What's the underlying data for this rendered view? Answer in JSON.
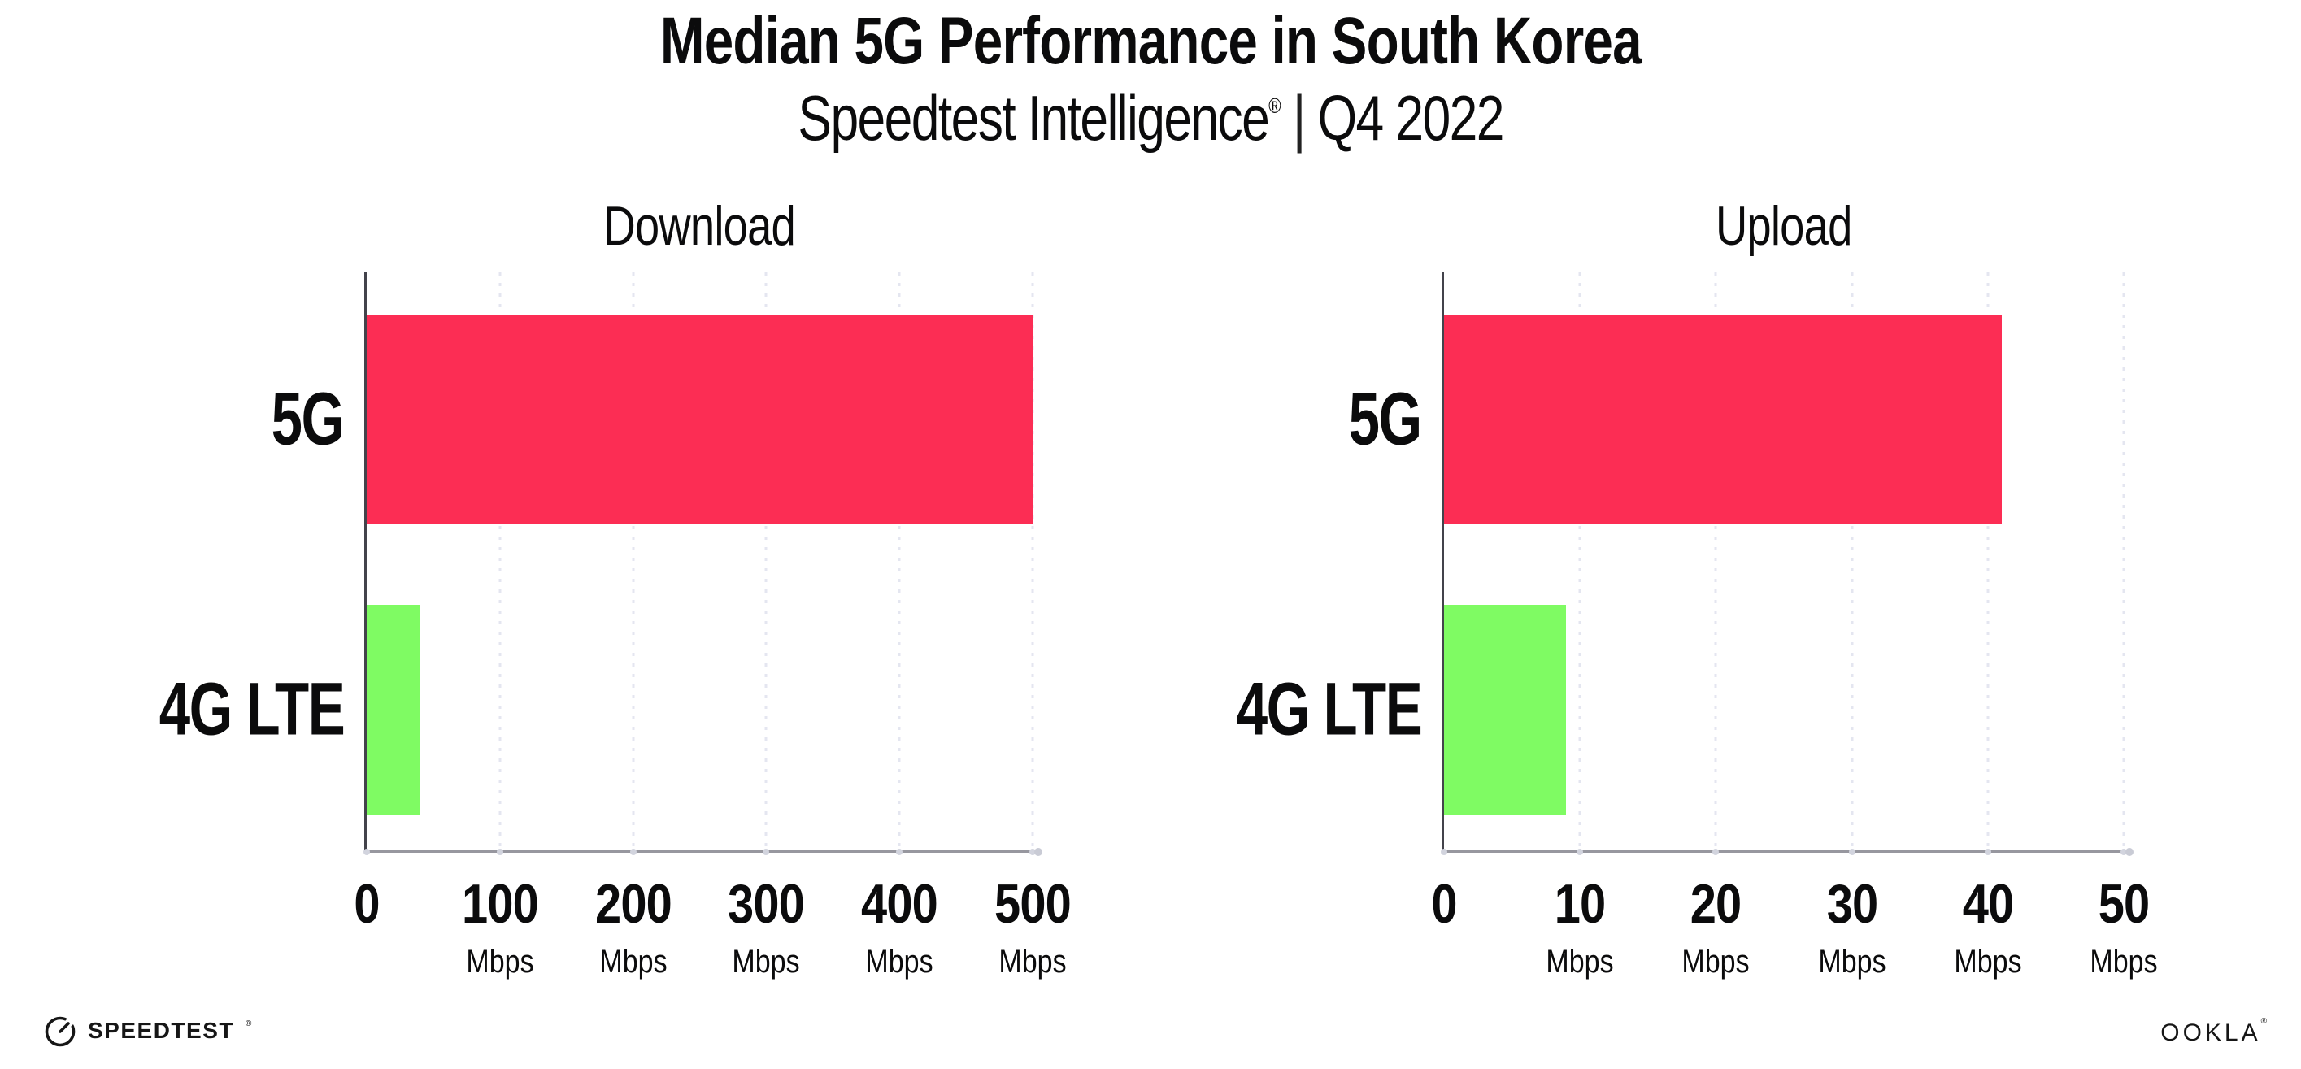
{
  "header": {
    "title": "Median 5G Performance in South Korea",
    "subtitle_product": "Speedtest Intelligence",
    "subtitle_reg": "®",
    "subtitle_divider": "|",
    "subtitle_period": "Q4 2022"
  },
  "footer": {
    "speedtest_icon": "gauge-icon",
    "speedtest_wordmark": "SPEEDTEST",
    "speedtest_reg": "®",
    "ookla_wordmark": "OOKLA",
    "ookla_reg": "®"
  },
  "colors": {
    "bar_5g": "#FC2D54",
    "bar_4g_lte": "#7FFB63",
    "gridline": "#E4E6F0",
    "y_axis": "#43434B",
    "x_axis": "#97979F",
    "text": "#0B0B0C"
  },
  "chart_data": [
    {
      "type": "bar",
      "orientation": "horizontal",
      "title": "Download",
      "categories": [
        "5G",
        "4G LTE"
      ],
      "values": [
        500,
        40
      ],
      "unit": "Mbps",
      "series_colors": [
        "#FC2D54",
        "#7FFB63"
      ],
      "xlim": [
        0,
        500
      ],
      "xticks": [
        0,
        100,
        200,
        300,
        400,
        500
      ],
      "xtick_unit": "Mbps",
      "grid": "vertical-dotted",
      "legend": "none"
    },
    {
      "type": "bar",
      "orientation": "horizontal",
      "title": "Upload",
      "categories": [
        "5G",
        "4G LTE"
      ],
      "values": [
        41,
        9
      ],
      "unit": "Mbps",
      "series_colors": [
        "#FC2D54",
        "#7FFB63"
      ],
      "xlim": [
        0,
        50
      ],
      "xticks": [
        0,
        10,
        20,
        30,
        40,
        50
      ],
      "xtick_unit": "Mbps",
      "grid": "vertical-dotted",
      "legend": "none"
    }
  ]
}
